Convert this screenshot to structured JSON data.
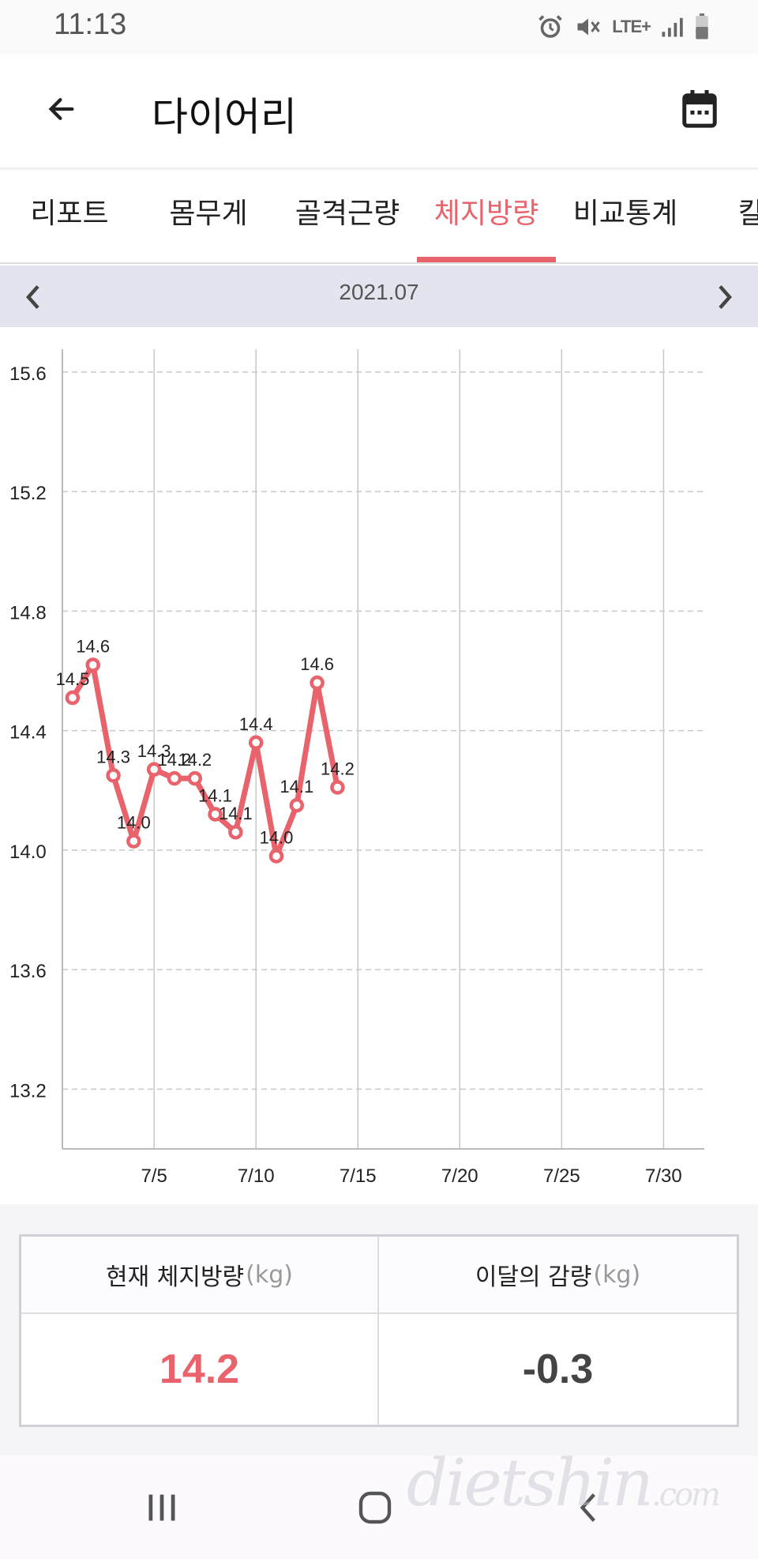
{
  "status_bar": {
    "time": "11:13",
    "network": "LTE+",
    "icons": [
      "alarm-icon",
      "mute-icon",
      "lte-icon",
      "signal-icon",
      "battery-icon"
    ]
  },
  "app_bar": {
    "title": "다이어리",
    "back_icon": "back-arrow-icon",
    "calendar_icon": "calendar-icon"
  },
  "tabs": [
    {
      "label": "리포트",
      "active": false
    },
    {
      "label": "몸무게",
      "active": false
    },
    {
      "label": "골격근량",
      "active": false
    },
    {
      "label": "체지방량",
      "active": true
    },
    {
      "label": "비교통계",
      "active": false
    },
    {
      "label": "칼로",
      "active": false
    }
  ],
  "month_nav": {
    "label": "2021.07",
    "prev_icon": "chevron-left-icon",
    "next_icon": "chevron-right-icon"
  },
  "chart_data": {
    "type": "line",
    "title": "",
    "xlabel": "",
    "ylabel": "",
    "color": "#e8636b",
    "ylim": [
      13.0,
      15.65
    ],
    "xlim": [
      0.5,
      32
    ],
    "x_ticks": [
      5,
      10,
      15,
      20,
      25,
      30
    ],
    "x_tick_labels": [
      "7/5",
      "7/10",
      "7/15",
      "7/20",
      "7/25",
      "7/30"
    ],
    "y_ticks": [
      13.2,
      13.6,
      14.0,
      14.4,
      14.8,
      15.2,
      15.6
    ],
    "y_tick_labels": [
      "13.2",
      "13.6",
      "14.0",
      "14.4",
      "14.8",
      "15.2",
      "15.6"
    ],
    "grid": true,
    "x": [
      1,
      2,
      3,
      4,
      5,
      6,
      7,
      8,
      9,
      10,
      11,
      12,
      13,
      14
    ],
    "values": [
      14.51,
      14.62,
      14.25,
      14.03,
      14.27,
      14.24,
      14.24,
      14.12,
      14.06,
      14.36,
      13.98,
      14.15,
      14.56,
      14.21
    ],
    "point_labels": [
      "14.5",
      "14.6",
      "14.3",
      "14.0",
      "14.3",
      "14.2",
      "14.2",
      "14.1",
      "14.1",
      "14.4",
      "14.0",
      "14.1",
      "14.6",
      "14.2"
    ]
  },
  "summary": {
    "current_label": "현재 체지방량",
    "current_unit": "(kg)",
    "current_value": "14.2",
    "loss_label": "이달의 감량",
    "loss_unit": "(kg)",
    "loss_value": "-0.3"
  },
  "nav_bar": {
    "icons": [
      "recent-apps-icon",
      "home-icon",
      "back-icon"
    ]
  },
  "watermark": {
    "text": "dietshin",
    "suffix": ".com"
  }
}
